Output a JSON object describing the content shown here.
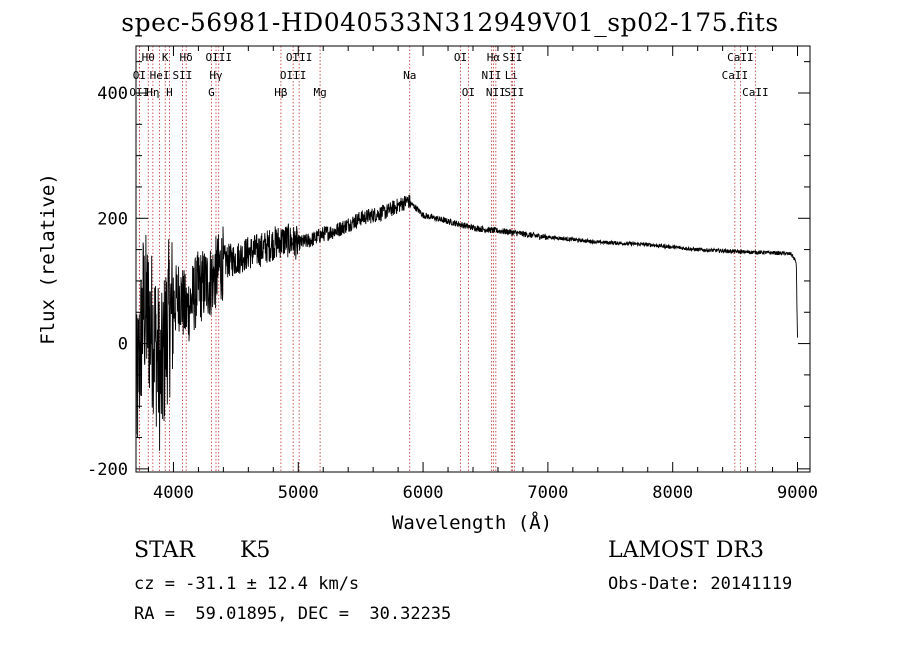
{
  "chart_data": {
    "type": "line",
    "title": "spec-56981-HD040533N312949V01_sp02-175.fits",
    "xlabel": "Wavelength (Å)",
    "ylabel": "Flux (relative)",
    "xlim": [
      3700,
      9100
    ],
    "ylim": [
      -205,
      475
    ],
    "x_ticks": [
      4000,
      5000,
      6000,
      7000,
      8000,
      9000
    ],
    "y_ticks": [
      -200,
      0,
      200,
      400
    ],
    "grid": false,
    "series": [
      {
        "name": "spectrum",
        "anchors": [
          [
            3700,
            -100
          ],
          [
            3760,
            60
          ],
          [
            3800,
            40
          ],
          [
            3850,
            10
          ],
          [
            3900,
            -60
          ],
          [
            3950,
            30
          ],
          [
            4000,
            60
          ],
          [
            4050,
            80
          ],
          [
            4100,
            50
          ],
          [
            4150,
            70
          ],
          [
            4200,
            90
          ],
          [
            4300,
            100
          ],
          [
            4400,
            130
          ],
          [
            4500,
            135
          ],
          [
            4600,
            145
          ],
          [
            4700,
            150
          ],
          [
            4800,
            160
          ],
          [
            4900,
            165
          ],
          [
            5000,
            160
          ],
          [
            5100,
            165
          ],
          [
            5200,
            175
          ],
          [
            5300,
            180
          ],
          [
            5400,
            190
          ],
          [
            5500,
            200
          ],
          [
            5600,
            205
          ],
          [
            5700,
            210
          ],
          [
            5800,
            220
          ],
          [
            5880,
            228
          ],
          [
            5950,
            215
          ],
          [
            6000,
            205
          ],
          [
            6100,
            200
          ],
          [
            6200,
            195
          ],
          [
            6300,
            190
          ],
          [
            6400,
            185
          ],
          [
            6500,
            182
          ],
          [
            6600,
            180
          ],
          [
            6700,
            178
          ],
          [
            6800,
            175
          ],
          [
            6900,
            172
          ],
          [
            7000,
            170
          ],
          [
            7200,
            166
          ],
          [
            7400,
            162
          ],
          [
            7600,
            160
          ],
          [
            7800,
            158
          ],
          [
            8000,
            154
          ],
          [
            8200,
            150
          ],
          [
            8400,
            148
          ],
          [
            8600,
            146
          ],
          [
            8800,
            145
          ],
          [
            8950,
            143
          ],
          [
            8990,
            130
          ],
          [
            9000,
            5
          ]
        ]
      }
    ],
    "lines": [
      {
        "label": "OII",
        "wave": 3727,
        "row": 2
      },
      {
        "label": "OI",
        "wave": 3727,
        "row": 1
      },
      {
        "label": "Hθ",
        "wave": 3798,
        "row": 0
      },
      {
        "label": "Hη",
        "wave": 3835,
        "row": 2
      },
      {
        "label": "HeI",
        "wave": 3889,
        "row": 1
      },
      {
        "label": "K",
        "wave": 3934,
        "row": 0
      },
      {
        "label": "H",
        "wave": 3968,
        "row": 2
      },
      {
        "label": "SII",
        "wave": 4072,
        "row": 1
      },
      {
        "label": "Hδ",
        "wave": 4102,
        "row": 0
      },
      {
        "label": "G",
        "wave": 4304,
        "row": 2
      },
      {
        "label": "Hγ",
        "wave": 4341,
        "row": 1
      },
      {
        "label": "OIII",
        "wave": 4363,
        "row": 0
      },
      {
        "label": "Hβ",
        "wave": 4861,
        "row": 2
      },
      {
        "label": "OIII",
        "wave": 4959,
        "row": 1
      },
      {
        "label": "OIII",
        "wave": 5007,
        "row": 0
      },
      {
        "label": "Mg",
        "wave": 5175,
        "row": 2
      },
      {
        "label": "Na",
        "wave": 5893,
        "row": 1
      },
      {
        "label": "OI",
        "wave": 6300,
        "row": 0
      },
      {
        "label": "OI",
        "wave": 6363,
        "row": 2
      },
      {
        "label": "NII",
        "wave": 6548,
        "row": 1
      },
      {
        "label": "Hα",
        "wave": 6563,
        "row": 0
      },
      {
        "label": "NII",
        "wave": 6583,
        "row": 2
      },
      {
        "label": "Li",
        "wave": 6707,
        "row": 1
      },
      {
        "label": "SII",
        "wave": 6716,
        "row": 0
      },
      {
        "label": "SII",
        "wave": 6731,
        "row": 2
      },
      {
        "label": "CaII",
        "wave": 8498,
        "row": 1
      },
      {
        "label": "CaII",
        "wave": 8542,
        "row": 0
      },
      {
        "label": "CaII",
        "wave": 8662,
        "row": 2
      }
    ]
  },
  "info": {
    "class_label": "STAR",
    "subclass": "K5",
    "survey": "LAMOST DR3",
    "cz": "cz = -31.1 ± 12.4 km/s",
    "obs_date": "Obs-Date: 20141119",
    "coords": "RA =  59.01895, DEC =  30.32235"
  }
}
